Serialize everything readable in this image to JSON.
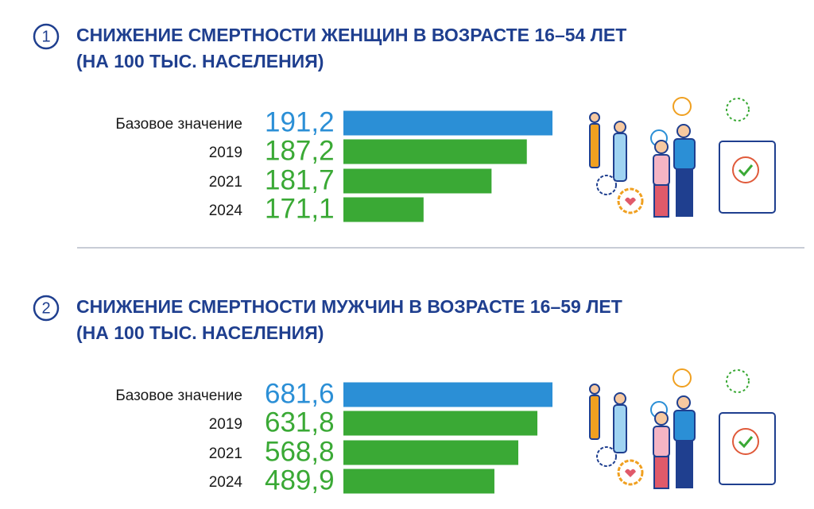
{
  "chart_data": [
    {
      "type": "bar",
      "number": "1",
      "title": "СНИЖЕНИЕ СМЕРТНОСТИ ЖЕНЩИН В ВОЗРАСТЕ 16–54 ЛЕТ",
      "subtitle": "(НА 100 ТЫС. НАСЕЛЕНИЯ)",
      "categories": [
        "Базовое значение",
        "2019",
        "2021",
        "2024"
      ],
      "values": [
        191.2,
        187.2,
        181.7,
        171.1
      ],
      "value_labels": [
        "191,2",
        "187,2",
        "181,7",
        "171,1"
      ],
      "colors": [
        "#2b8fd6",
        "#3aa935",
        "#3aa935",
        "#3aa935"
      ],
      "xlim": [
        158.6,
        191.2
      ]
    },
    {
      "type": "bar",
      "number": "2",
      "title": "СНИЖЕНИЕ СМЕРТНОСТИ МУЖЧИН В ВОЗРАСТЕ 16–59 ЛЕТ",
      "subtitle": "(НА 100 ТЫС. НАСЕЛЕНИЯ)",
      "categories": [
        "Базовое значение",
        "2019",
        "2021",
        "2024"
      ],
      "values": [
        681.6,
        631.8,
        568.8,
        489.9
      ],
      "value_labels": [
        "681,6",
        "631,8",
        "568,8",
        "489,9"
      ],
      "colors": [
        "#2b8fd6",
        "#3aa935",
        "#3aa935",
        "#3aa935"
      ],
      "xlim": [
        -8.6,
        681.6
      ]
    }
  ]
}
